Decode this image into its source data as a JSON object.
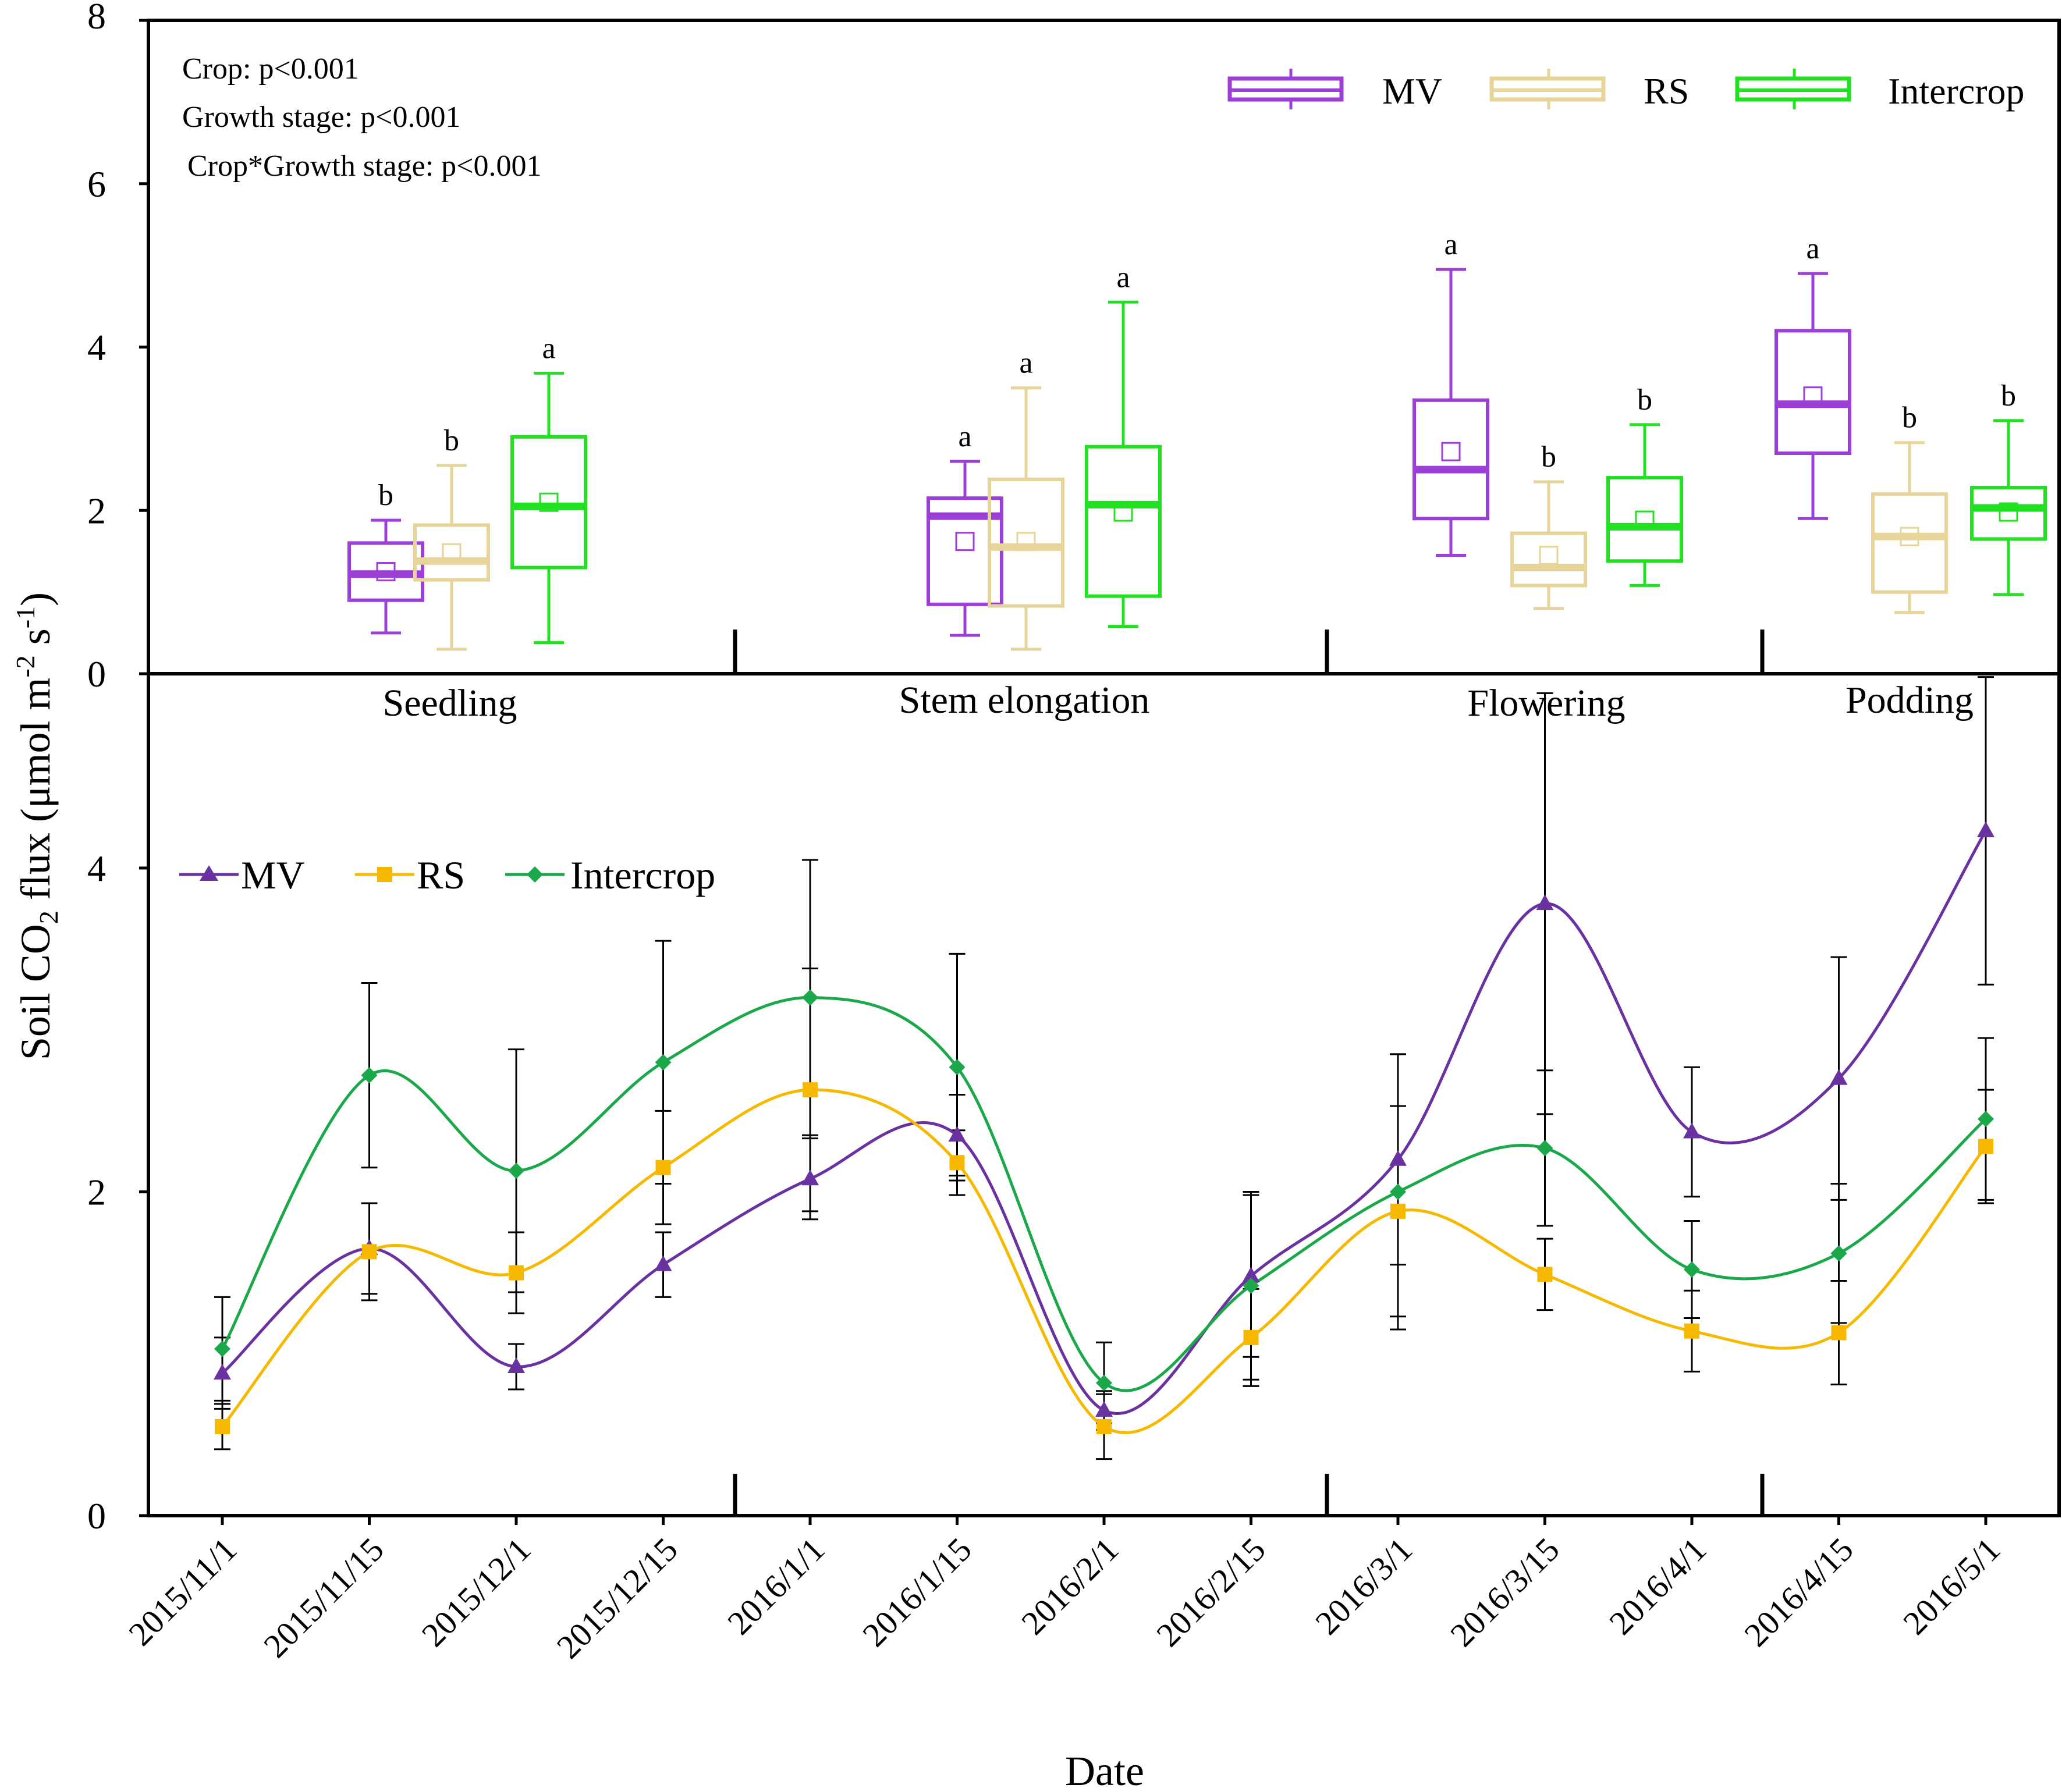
{
  "chart_data": {
    "type": "composite",
    "ylabel": "Soil CO2 flux (μmol m-2 s-1)",
    "ylabel_parts": {
      "prefix": "Soil CO",
      "sub": "2",
      "mid": " flux (μmol m",
      "sup1": "-2",
      "mid2": " s",
      "sup2": "-1",
      "end": ")"
    },
    "xlabel": "Date",
    "colors": {
      "MV": "#9b3fd6",
      "RS": "#e6d49a",
      "Intercrop": "#22e022",
      "MV_line": "#6a32a0",
      "RS_line": "#f7b800",
      "Intercrop_line": "#1aa84a"
    },
    "stats_text": [
      "Crop: p<0.001",
      "Growth stage: p<0.001",
      "Crop*Growth stage: p<0.001"
    ],
    "box_panel": {
      "type": "box",
      "ylim": [
        0,
        8
      ],
      "yticks": [
        "0",
        "2",
        "4",
        "6",
        "8"
      ],
      "legend": [
        "MV",
        "RS",
        "Intercrop"
      ],
      "stages": [
        {
          "name": "Seedling",
          "boxes": [
            {
              "crop": "MV",
              "min": 0.5,
              "q1": 0.9,
              "median": 1.22,
              "q3": 1.6,
              "max": 1.88,
              "mean": 1.25,
              "sig": "b"
            },
            {
              "crop": "RS",
              "min": 0.3,
              "q1": 1.15,
              "median": 1.38,
              "q3": 1.82,
              "max": 2.55,
              "mean": 1.48,
              "sig": "b"
            },
            {
              "crop": "Intercrop",
              "min": 0.38,
              "q1": 1.3,
              "median": 2.05,
              "q3": 2.9,
              "max": 3.68,
              "mean": 2.1,
              "sig": "a"
            }
          ]
        },
        {
          "name": "Stem elongation",
          "boxes": [
            {
              "crop": "MV",
              "min": 0.47,
              "q1": 0.85,
              "median": 1.93,
              "q3": 2.15,
              "max": 2.6,
              "mean": 1.62,
              "sig": "a"
            },
            {
              "crop": "RS",
              "min": 0.3,
              "q1": 0.83,
              "median": 1.55,
              "q3": 2.38,
              "max": 3.5,
              "mean": 1.62,
              "sig": "a"
            },
            {
              "crop": "Intercrop",
              "min": 0.58,
              "q1": 0.95,
              "median": 2.07,
              "q3": 2.78,
              "max": 4.55,
              "mean": 1.98,
              "sig": "a"
            }
          ]
        },
        {
          "name": "Flowering",
          "boxes": [
            {
              "crop": "MV",
              "min": 1.45,
              "q1": 1.9,
              "median": 2.5,
              "q3": 3.35,
              "max": 4.95,
              "mean": 2.72,
              "sig": "a"
            },
            {
              "crop": "RS",
              "min": 0.8,
              "q1": 1.08,
              "median": 1.3,
              "q3": 1.72,
              "max": 2.35,
              "mean": 1.45,
              "sig": "b"
            },
            {
              "crop": "Intercrop",
              "min": 1.08,
              "q1": 1.38,
              "median": 1.8,
              "q3": 2.4,
              "max": 3.05,
              "mean": 1.88,
              "sig": "b"
            }
          ]
        },
        {
          "name": "Podding",
          "boxes": [
            {
              "crop": "MV",
              "min": 1.9,
              "q1": 2.7,
              "median": 3.3,
              "q3": 4.2,
              "max": 4.9,
              "mean": 3.4,
              "sig": "a"
            },
            {
              "crop": "RS",
              "min": 0.75,
              "q1": 1.0,
              "median": 1.68,
              "q3": 2.2,
              "max": 2.83,
              "mean": 1.68,
              "sig": "b"
            },
            {
              "crop": "Intercrop",
              "min": 0.97,
              "q1": 1.65,
              "median": 2.03,
              "q3": 2.28,
              "max": 3.1,
              "mean": 1.98,
              "sig": "b"
            }
          ]
        }
      ]
    },
    "line_panel": {
      "type": "line",
      "ylim": [
        0,
        5.2
      ],
      "yticks": [
        "0",
        "2",
        "4"
      ],
      "x": [
        "2015/11/1",
        "2015/11/15",
        "2015/12/1",
        "2015/12/15",
        "2016/1/1",
        "2016/1/15",
        "2016/2/1",
        "2016/2/15",
        "2016/3/1",
        "2016/3/15",
        "2016/4/1",
        "2016/4/15",
        "2016/5/1"
      ],
      "series": [
        {
          "name": "MV",
          "values": [
            0.88,
            1.65,
            0.92,
            1.55,
            2.08,
            2.35,
            0.65,
            1.48,
            2.2,
            3.78,
            2.37,
            2.7,
            4.23
          ],
          "err": [
            0.22,
            0.28,
            0.14,
            0.2,
            0.25,
            0.25,
            0.12,
            0.5,
            0.65,
            1.3,
            0.4,
            0.75,
            0.95
          ]
        },
        {
          "name": "RS",
          "values": [
            0.55,
            1.63,
            1.5,
            2.15,
            2.63,
            2.18,
            0.55,
            1.1,
            1.88,
            1.49,
            1.14,
            1.13,
            2.28
          ],
          "err": [
            0.14,
            0.3,
            0.25,
            0.35,
            0.75,
            0.2,
            0.2,
            0.3,
            0.65,
            0.22,
            0.25,
            0.32,
            0.35
          ]
        },
        {
          "name": "Intercrop",
          "values": [
            1.03,
            2.72,
            2.13,
            2.8,
            3.2,
            2.77,
            0.82,
            1.42,
            2.0,
            2.27,
            1.52,
            1.62,
            2.45
          ],
          "err": [
            0.32,
            0.57,
            0.75,
            0.75,
            0.85,
            0.7,
            0.25,
            0.58,
            0.85,
            0.48,
            0.3,
            0.43,
            0.5
          ]
        }
      ]
    }
  }
}
